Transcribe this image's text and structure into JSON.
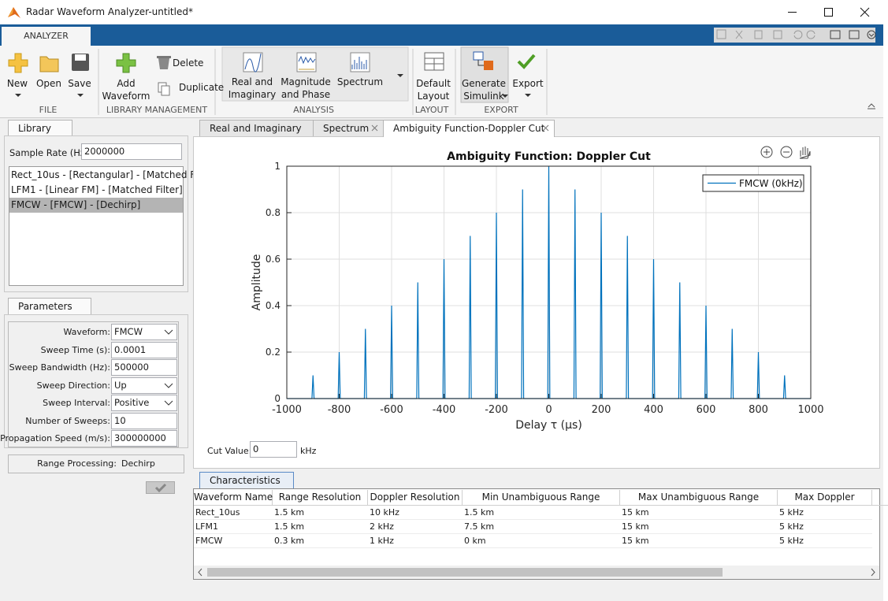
{
  "window": {
    "title": "Radar Waveform Analyzer-untitled*"
  },
  "ribbon": {
    "tab": "ANALYZER",
    "groups": [
      {
        "label": "FILE",
        "buttons": [
          "New",
          "Open",
          "Save"
        ]
      },
      {
        "label": "LIBRARY MANAGEMENT",
        "buttons": [
          "Add Waveform",
          "Delete",
          "Duplicate"
        ]
      },
      {
        "label": "ANALYSIS",
        "buttons": [
          "Real and Imaginary",
          "Magnitude and Phase",
          "Spectrum"
        ]
      },
      {
        "label": "LAYOUT",
        "buttons": [
          "Default Layout"
        ]
      },
      {
        "label": "EXPORT",
        "buttons": [
          "Generate Simulink",
          "Export"
        ]
      }
    ]
  },
  "library": {
    "tab": "Library",
    "sample_rate_label": "Sample Rate (Hz):",
    "sample_rate": "2000000",
    "items": [
      "Rect_10us - [Rectangular] - [Matched F...",
      "LFM1 - [Linear FM] - [Matched Filter]",
      "FMCW - [FMCW] - [Dechirp]"
    ],
    "selected": 2
  },
  "parameters": {
    "tab": "Parameters",
    "fields": [
      {
        "label": "Waveform:",
        "value": "FMCW",
        "dropdown": true
      },
      {
        "label": "Sweep Time (s):",
        "value": "0.0001"
      },
      {
        "label": "Sweep Bandwidth (Hz):",
        "value": "500000"
      },
      {
        "label": "Sweep Direction:",
        "value": "Up",
        "dropdown": true
      },
      {
        "label": "Sweep Interval:",
        "value": "Positive",
        "dropdown": true
      },
      {
        "label": "Number of Sweeps:",
        "value": "10"
      },
      {
        "label": "Propagation Speed (m/s):",
        "value": "300000000"
      }
    ],
    "range_processing_label": "Range Processing:",
    "range_processing": "Dechirp"
  },
  "plot_tabs": [
    "Real and Imaginary",
    "Spectrum",
    "Ambiguity Function-Doppler Cut"
  ],
  "active_plot_tab": 2,
  "chart_data": {
    "type": "line",
    "title": "Ambiguity Function: Doppler Cut",
    "xlabel": "Delay τ (μs)",
    "ylabel": "Amplitude",
    "xlim": [
      -1000,
      1000
    ],
    "ylim": [
      0,
      1
    ],
    "xticks": [
      -1000,
      -800,
      -600,
      -400,
      -200,
      0,
      200,
      400,
      600,
      800,
      1000
    ],
    "yticks": [
      0,
      0.2,
      0.4,
      0.6,
      0.8,
      1
    ],
    "grid": true,
    "legend": "northeast",
    "series": [
      {
        "name": "FMCW (0kHz)",
        "color": "#0072bd",
        "x": [
          -1000,
          -904,
          -900,
          -896,
          -804,
          -800,
          -796,
          -704,
          -700,
          -696,
          -604,
          -600,
          -596,
          -504,
          -500,
          -496,
          -404,
          -400,
          -396,
          -304,
          -300,
          -296,
          -204,
          -200,
          -196,
          -104,
          -100,
          -96,
          -4,
          0,
          4,
          96,
          100,
          104,
          196,
          200,
          204,
          296,
          300,
          304,
          396,
          400,
          404,
          496,
          500,
          504,
          596,
          600,
          604,
          696,
          700,
          704,
          796,
          800,
          804,
          896,
          900,
          904,
          1000
        ],
        "values": [
          0,
          0,
          0.1,
          0,
          0,
          0.2,
          0,
          0,
          0.3,
          0,
          0,
          0.4,
          0,
          0,
          0.5,
          0,
          0,
          0.6,
          0,
          0,
          0.7,
          0,
          0,
          0.8,
          0,
          0,
          0.9,
          0,
          0,
          1,
          0,
          0,
          0.9,
          0,
          0,
          0.8,
          0,
          0,
          0.7,
          0,
          0,
          0.6,
          0,
          0,
          0.5,
          0,
          0,
          0.4,
          0,
          0,
          0.3,
          0,
          0,
          0.2,
          0,
          0,
          0.1,
          0,
          0
        ]
      }
    ]
  },
  "cut_value": {
    "label": "Cut Value:",
    "value": "0",
    "unit": "kHz"
  },
  "characteristics": {
    "tab": "Characteristics",
    "columns": [
      "Waveform Name",
      "Range Resolution",
      "Doppler Resolution",
      "Min Unambiguous Range",
      "Max Unambiguous Range",
      "Max Doppler"
    ],
    "rows": [
      [
        "Rect_10us",
        "1.5 km",
        "10 kHz",
        "1.5 km",
        "15 km",
        "5 kHz"
      ],
      [
        "LFM1",
        "1.5 km",
        "2 kHz",
        "7.5 km",
        "15 km",
        "5 kHz"
      ],
      [
        "FMCW",
        "0.3 km",
        "1 kHz",
        "0 km",
        "15 km",
        "5 kHz"
      ]
    ]
  }
}
